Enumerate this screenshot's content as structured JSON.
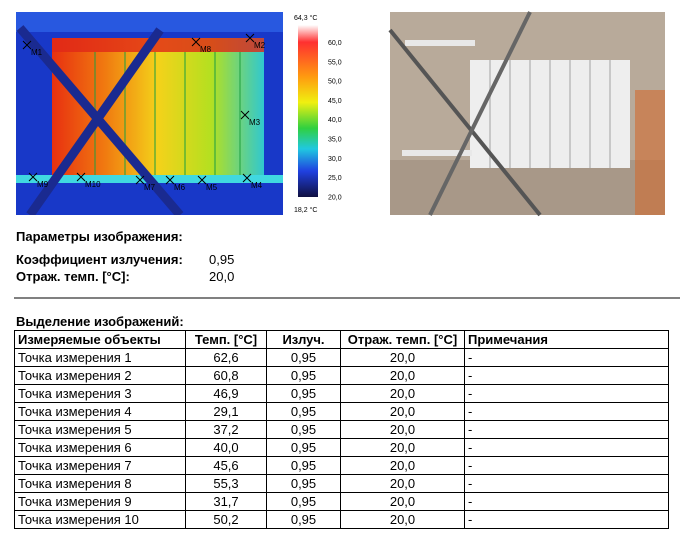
{
  "thermal_image": {
    "markers": [
      "M1",
      "M8",
      "M2",
      "M3",
      "M9",
      "M10",
      "M7",
      "M6",
      "M5",
      "M4"
    ],
    "scale_max": "64,3 °C",
    "scale_ticks": [
      "60,0",
      "55,0",
      "50,0",
      "45,0",
      "40,0",
      "35,0",
      "30,0",
      "25,0",
      "20,0"
    ],
    "scale_min": "18,2 °C"
  },
  "parameters": {
    "title": "Параметры изображения:",
    "rows": [
      [
        "Коэффициент излучения:",
        "0,95"
      ],
      [
        "Отраж. темп. [°C]:",
        "20,0"
      ]
    ]
  },
  "table": {
    "title": "Выделение изображений:",
    "header": [
      "Измеряемые объекты",
      "Темп. [°C]",
      "Излуч.",
      "Отраж. темп. [°C]",
      "Примечания"
    ],
    "rows": [
      [
        "Точка измерения 1",
        "62,6",
        "0,95",
        "20,0",
        "-"
      ],
      [
        "Точка измерения 2",
        "60,8",
        "0,95",
        "20,0",
        "-"
      ],
      [
        "Точка измерения 3",
        "46,9",
        "0,95",
        "20,0",
        "-"
      ],
      [
        "Точка измерения 4",
        "29,1",
        "0,95",
        "20,0",
        "-"
      ],
      [
        "Точка измерения 5",
        "37,2",
        "0,95",
        "20,0",
        "-"
      ],
      [
        "Точка измерения 6",
        "40,0",
        "0,95",
        "20,0",
        "-"
      ],
      [
        "Точка измерения 7",
        "45,6",
        "0,95",
        "20,0",
        "-"
      ],
      [
        "Точка измерения 8",
        "55,3",
        "0,95",
        "20,0",
        "-"
      ],
      [
        "Точка измерения 9",
        "31,7",
        "0,95",
        "20,0",
        "-"
      ],
      [
        "Точка измерения 10",
        "50,2",
        "0,95",
        "20,0",
        "-"
      ]
    ]
  }
}
